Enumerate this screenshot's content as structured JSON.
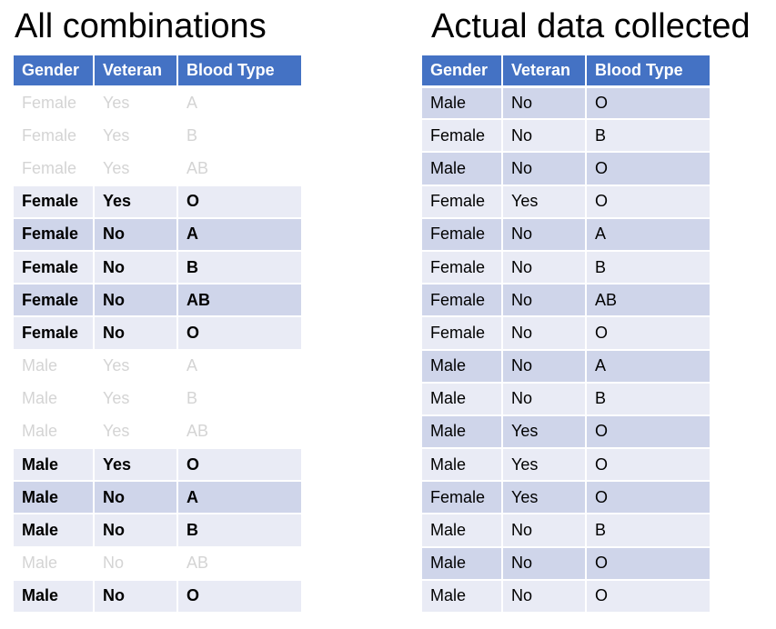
{
  "left": {
    "title": "All combinations",
    "headers": [
      "Gender",
      "Veteran",
      "Blood Type"
    ],
    "rows": [
      {
        "gender": "Female",
        "veteran": "Yes",
        "blood": "A",
        "style": "faded"
      },
      {
        "gender": "Female",
        "veteran": "Yes",
        "blood": "B",
        "style": "faded"
      },
      {
        "gender": "Female",
        "veteran": "Yes",
        "blood": "AB",
        "style": "faded"
      },
      {
        "gender": "Female",
        "veteran": "Yes",
        "blood": "O",
        "style": "bold light"
      },
      {
        "gender": "Female",
        "veteran": "No",
        "blood": "A",
        "style": "bold dark"
      },
      {
        "gender": "Female",
        "veteran": "No",
        "blood": "B",
        "style": "bold light"
      },
      {
        "gender": "Female",
        "veteran": "No",
        "blood": "AB",
        "style": "bold dark"
      },
      {
        "gender": "Female",
        "veteran": "No",
        "blood": "O",
        "style": "bold light"
      },
      {
        "gender": "Male",
        "veteran": "Yes",
        "blood": "A",
        "style": "faded"
      },
      {
        "gender": "Male",
        "veteran": "Yes",
        "blood": "B",
        "style": "faded"
      },
      {
        "gender": "Male",
        "veteran": "Yes",
        "blood": "AB",
        "style": "faded"
      },
      {
        "gender": "Male",
        "veteran": "Yes",
        "blood": "O",
        "style": "bold light"
      },
      {
        "gender": "Male",
        "veteran": "No",
        "blood": "A",
        "style": "bold dark"
      },
      {
        "gender": "Male",
        "veteran": "No",
        "blood": "B",
        "style": "bold light"
      },
      {
        "gender": "Male",
        "veteran": "No",
        "blood": "AB",
        "style": "faded"
      },
      {
        "gender": "Male",
        "veteran": "No",
        "blood": "O",
        "style": "bold light"
      }
    ]
  },
  "right": {
    "title": "Actual data collected",
    "headers": [
      "Gender",
      "Veteran",
      "Blood Type"
    ],
    "rows": [
      {
        "gender": "Male",
        "veteran": "No",
        "blood": "O"
      },
      {
        "gender": "Female",
        "veteran": "No",
        "blood": "B"
      },
      {
        "gender": "Male",
        "veteran": "No",
        "blood": "O"
      },
      {
        "gender": "Female",
        "veteran": "Yes",
        "blood": "O"
      },
      {
        "gender": "Female",
        "veteran": "No",
        "blood": "A"
      },
      {
        "gender": "Female",
        "veteran": "No",
        "blood": "B"
      },
      {
        "gender": "Female",
        "veteran": "No",
        "blood": "AB"
      },
      {
        "gender": "Female",
        "veteran": "No",
        "blood": "O"
      },
      {
        "gender": "Male",
        "veteran": "No",
        "blood": "A"
      },
      {
        "gender": "Male",
        "veteran": "No",
        "blood": "B"
      },
      {
        "gender": "Male",
        "veteran": "Yes",
        "blood": "O"
      },
      {
        "gender": "Male",
        "veteran": "Yes",
        "blood": "O"
      },
      {
        "gender": "Female",
        "veteran": "Yes",
        "blood": "O"
      },
      {
        "gender": "Male",
        "veteran": "No",
        "blood": "B"
      },
      {
        "gender": "Male",
        "veteran": "No",
        "blood": "O"
      },
      {
        "gender": "Male",
        "veteran": "No",
        "blood": "O"
      }
    ]
  },
  "colors": {
    "header": "#4472c4",
    "band_dark": "#cfd5ea",
    "band_light": "#e9ebf5",
    "faded_text": "#d4d4d4"
  }
}
